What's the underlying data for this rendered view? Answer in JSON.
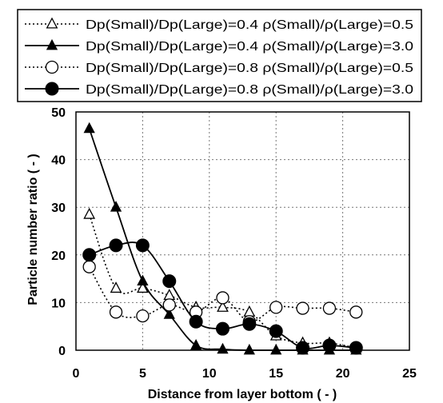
{
  "chart_data": {
    "type": "line",
    "xlabel": "Distance from layer bottom ( - )",
    "ylabel": "Particle number ratio ( - )",
    "xlim": [
      0,
      25
    ],
    "ylim": [
      0,
      50
    ],
    "xticks": [
      0,
      5,
      10,
      15,
      20,
      25
    ],
    "yticks": [
      0,
      10,
      20,
      30,
      40,
      50
    ],
    "grid": true,
    "legend_position": "top",
    "series": [
      {
        "name": "Dp(Small)/Dp(Large)=0.4  ρ(Small)/ρ(Large)=0.5",
        "marker": "open-triangle",
        "line": "dotted",
        "x": [
          1,
          3,
          5,
          7,
          9,
          11,
          13,
          15,
          17,
          19,
          21
        ],
        "y": [
          28.5,
          13,
          13,
          11.5,
          9,
          9,
          8,
          3,
          1.5,
          1.5,
          0.5
        ]
      },
      {
        "name": "Dp(Small)/Dp(Large)=0.4  ρ(Small)/ρ(Large)=3.0",
        "marker": "filled-triangle",
        "line": "solid",
        "x": [
          1,
          3,
          5,
          7,
          9,
          11,
          13,
          15,
          17,
          19,
          21
        ],
        "y": [
          46.5,
          30,
          14.5,
          7.5,
          1,
          0.2,
          0,
          0,
          0,
          0,
          0
        ]
      },
      {
        "name": "Dp(Small)/Dp(Large)=0.8  ρ(Small)/ρ(Large)=0.5",
        "marker": "open-circle",
        "line": "dotted",
        "x": [
          1,
          3,
          5,
          7,
          9,
          11,
          13,
          15,
          17,
          19,
          21
        ],
        "y": [
          17.5,
          8,
          7.2,
          9.5,
          8,
          11,
          6,
          9,
          8.8,
          8.8,
          8
        ]
      },
      {
        "name": "Dp(Small)/Dp(Large)=0.8  ρ(Small)/ρ(Large)=3.0",
        "marker": "filled-circle",
        "line": "solid",
        "x": [
          1,
          3,
          5,
          7,
          9,
          11,
          13,
          15,
          17,
          19,
          21
        ],
        "y": [
          20,
          22,
          22,
          14.5,
          6,
          4.5,
          5.5,
          4,
          0.5,
          1,
          0.5
        ]
      }
    ]
  }
}
